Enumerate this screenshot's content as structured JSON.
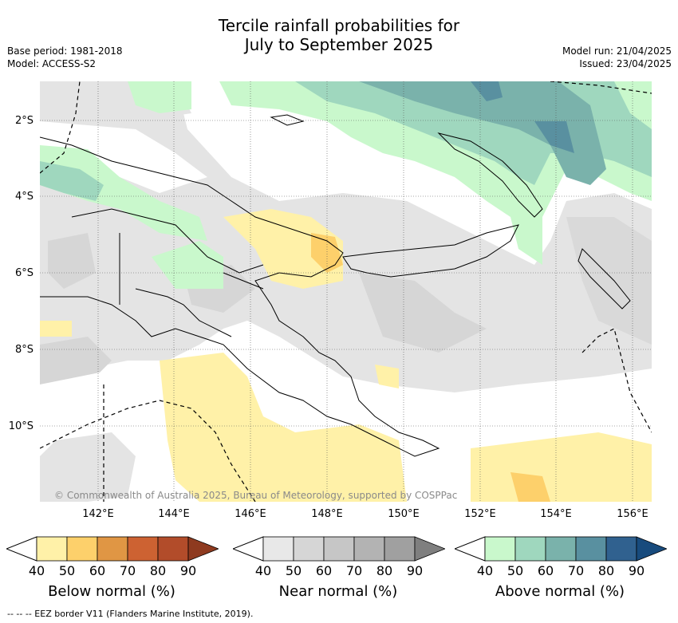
{
  "title_line1": "Tercile rainfall probabilities for",
  "title_line2": "July to September 2025",
  "left_meta": {
    "base_period": "Base period: 1981-2018",
    "model": "Model: ACCESS-S2"
  },
  "right_meta": {
    "model_run": "Model run: 21/04/2025",
    "issued": "Issued: 23/04/2025"
  },
  "lat_labels": [
    "2°S",
    "4°S",
    "6°S",
    "8°S",
    "10°S"
  ],
  "lon_labels": [
    "142°E",
    "144°E",
    "146°E",
    "148°E",
    "150°E",
    "152°E",
    "154°E",
    "156°E"
  ],
  "copyright": "© Commonwealth of Australia 2025, Bureau of Meteorology, supported by COSPPac",
  "colorbars": [
    {
      "title": "Below normal (%)",
      "ticks": [
        "40",
        "50",
        "60",
        "70",
        "80",
        "90"
      ],
      "colors": [
        "#fff1a8",
        "#fdd06b",
        "#e09644",
        "#cd6232",
        "#b24c2a",
        "#8e3a1f"
      ]
    },
    {
      "title": "Near normal (%)",
      "ticks": [
        "40",
        "50",
        "60",
        "70",
        "80",
        "90"
      ],
      "colors": [
        "#e8e8e8",
        "#d6d6d6",
        "#c6c6c6",
        "#b3b3b3",
        "#a0a0a0",
        "#7f7f7f"
      ]
    },
    {
      "title": "Above normal (%)",
      "ticks": [
        "40",
        "50",
        "60",
        "70",
        "80",
        "90"
      ],
      "colors": [
        "#c9f8cc",
        "#9fd7be",
        "#7ab2ab",
        "#5990a0",
        "#30618f",
        "#184b7d"
      ]
    }
  ],
  "footer": "--  --  -- EEZ border V11 (Flanders Marine Institute, 2019).",
  "colors": {
    "land_outline": "#000000",
    "gridline": "#555555",
    "eez_border": "#000000"
  }
}
